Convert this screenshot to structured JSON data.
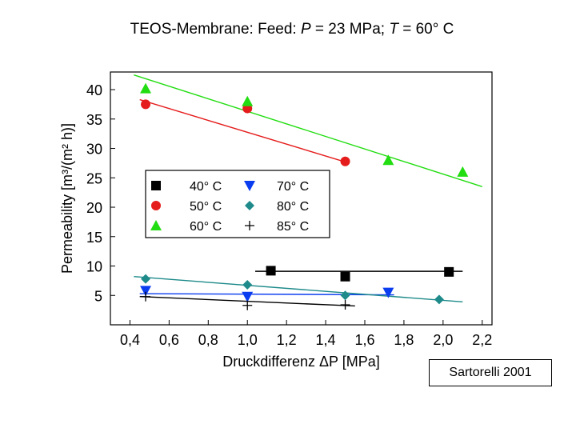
{
  "chart_data": {
    "type": "scatter",
    "title": {
      "prefix": "TEOS-Membrane: Feed: ",
      "p_sym": "P",
      "p_val": " = 23 MPa; ",
      "t_sym": "T",
      "t_val": " = 60° C"
    },
    "xlabel": "Druckdifferenz ΔP [MPa]",
    "ylabel": "Permeability [m³/(m² h)]",
    "xlim": [
      0.3,
      2.25
    ],
    "ylim": [
      0,
      43
    ],
    "xticks": [
      0.4,
      0.6,
      0.8,
      1.0,
      1.2,
      1.4,
      1.6,
      1.8,
      2.0,
      2.2
    ],
    "xtick_labels": [
      "0,4",
      "0,6",
      "0,8",
      "1,0",
      "1,2",
      "1,4",
      "1,6",
      "1,8",
      "2,0",
      "2,2"
    ],
    "yticks": [
      5,
      10,
      15,
      20,
      25,
      30,
      35,
      40
    ],
    "ytick_labels": [
      "5",
      "10",
      "15",
      "20",
      "25",
      "30",
      "35",
      "40"
    ],
    "series": [
      {
        "name": "40° C",
        "marker": "square",
        "color": "#000000",
        "x": [
          1.12,
          1.5,
          2.03
        ],
        "y": [
          9.2,
          8.2,
          9.0
        ],
        "fit": [
          1.04,
          9.1,
          2.1,
          9.1
        ]
      },
      {
        "name": "50° C",
        "marker": "circle",
        "color": "#e51c1c",
        "x": [
          0.48,
          1.0,
          1.5
        ],
        "y": [
          37.5,
          36.8,
          27.8
        ],
        "fit": [
          0.45,
          38.3,
          1.52,
          27.5
        ]
      },
      {
        "name": "60° C",
        "marker": "triangle-up",
        "color": "#22dd11",
        "x": [
          0.48,
          1.0,
          1.72,
          2.1
        ],
        "y": [
          40.2,
          38.0,
          28.0,
          26.0
        ],
        "fit": [
          0.42,
          42.5,
          2.2,
          23.5
        ]
      },
      {
        "name": "70° C",
        "marker": "triangle-down",
        "color": "#0b3df0",
        "x": [
          0.48,
          1.0,
          1.72
        ],
        "y": [
          5.8,
          4.8,
          5.5
        ],
        "fit": [
          0.45,
          5.3,
          1.75,
          5.1
        ]
      },
      {
        "name": "80° C",
        "marker": "diamond",
        "color": "#1e8a8a",
        "x": [
          0.48,
          1.0,
          1.5,
          1.98
        ],
        "y": [
          7.8,
          6.8,
          5.0,
          4.3
        ],
        "fit": [
          0.42,
          8.2,
          2.1,
          3.9
        ]
      },
      {
        "name": "85° C",
        "marker": "plus",
        "color": "#000000",
        "x": [
          0.48,
          1.0,
          1.5
        ],
        "y": [
          4.8,
          3.3,
          3.4
        ],
        "fit": [
          0.45,
          4.8,
          1.55,
          3.2
        ]
      }
    ],
    "legend": {
      "position": "center-left",
      "columns": 2
    }
  },
  "credit": "Sartorelli 2001"
}
